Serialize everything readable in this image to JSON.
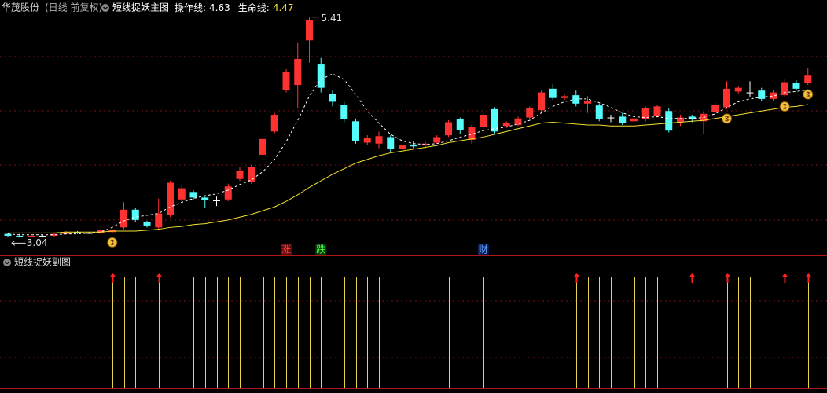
{
  "header": {
    "stock": "华茂股份",
    "period": "(日线 前复权)",
    "indicator": "短线捉妖主图",
    "lines": [
      {
        "label": "操作线:",
        "value": 4.63,
        "color": "#ffffff"
      },
      {
        "label": "生命线:",
        "value": 4.47,
        "color": "#f0e030"
      }
    ]
  },
  "sub_title": "短线捉妖副图",
  "chart_data": {
    "type": "candlestick",
    "ylim": [
      2.95,
      5.5
    ],
    "colors": {
      "up": "#ff3232",
      "down": "#54fcfc",
      "flat": "#ffffff"
    },
    "open": [
      3.08,
      3.06,
      3.05,
      3.06,
      3.06,
      3.08,
      3.1,
      3.09,
      3.09,
      3.1,
      3.15,
      3.34,
      3.21,
      3.15,
      3.28,
      3.45,
      3.53,
      3.47,
      3.44,
      3.45,
      3.67,
      3.64,
      3.93,
      4.18,
      4.63,
      4.68,
      5.16,
      4.9,
      4.58,
      4.47,
      4.29,
      4.06,
      4.05,
      4.12,
      3.99,
      4.04,
      4.03,
      4.06,
      4.14,
      4.31,
      4.09,
      4.23,
      4.42,
      4.24,
      4.25,
      4.33,
      4.41,
      4.64,
      4.54,
      4.57,
      4.48,
      4.46,
      4.33,
      4.34,
      4.29,
      4.31,
      4.35,
      4.4,
      4.28,
      4.34,
      4.29,
      4.39,
      4.44,
      4.61,
      4.6,
      4.62,
      4.53,
      4.57,
      4.7,
      4.7
    ],
    "high": [
      3.09,
      3.08,
      3.07,
      3.07,
      3.09,
      3.11,
      3.11,
      3.1,
      3.13,
      3.13,
      3.42,
      3.36,
      3.22,
      3.46,
      3.65,
      3.6,
      3.55,
      3.48,
      3.48,
      3.62,
      3.8,
      3.82,
      4.13,
      4.38,
      4.85,
      5.13,
      5.41,
      4.97,
      4.62,
      4.5,
      4.32,
      4.14,
      4.18,
      4.14,
      4.06,
      4.08,
      4.07,
      4.14,
      4.3,
      4.33,
      4.25,
      4.38,
      4.44,
      4.29,
      4.34,
      4.45,
      4.62,
      4.69,
      4.58,
      4.62,
      4.56,
      4.48,
      4.36,
      4.38,
      4.34,
      4.45,
      4.47,
      4.43,
      4.36,
      4.36,
      4.39,
      4.49,
      4.72,
      4.67,
      4.72,
      4.65,
      4.63,
      4.74,
      4.73,
      4.86
    ],
    "low": [
      3.05,
      3.04,
      3.04,
      3.05,
      3.05,
      3.07,
      3.08,
      3.08,
      3.08,
      3.09,
      3.13,
      3.21,
      3.15,
      3.13,
      3.26,
      3.42,
      3.45,
      3.36,
      3.38,
      3.43,
      3.65,
      3.62,
      3.91,
      4.16,
      4.6,
      4.43,
      4.92,
      4.6,
      4.45,
      4.28,
      4.05,
      4.03,
      4.0,
      3.95,
      3.97,
      4.0,
      4.0,
      4.05,
      4.12,
      4.15,
      4.05,
      4.21,
      4.16,
      4.22,
      4.24,
      4.31,
      4.38,
      4.52,
      4.52,
      4.45,
      4.38,
      4.29,
      4.28,
      4.25,
      4.26,
      4.29,
      4.33,
      4.17,
      4.24,
      4.28,
      4.15,
      4.37,
      4.42,
      4.59,
      4.55,
      4.51,
      4.51,
      4.55,
      4.62,
      4.68
    ],
    "close": [
      3.06,
      3.05,
      3.06,
      3.06,
      3.08,
      3.1,
      3.09,
      3.09,
      3.12,
      3.12,
      3.34,
      3.23,
      3.17,
      3.3,
      3.63,
      3.57,
      3.47,
      3.44,
      3.44,
      3.59,
      3.76,
      3.8,
      4.1,
      4.36,
      4.82,
      4.96,
      5.38,
      4.65,
      4.5,
      4.31,
      4.08,
      4.11,
      4.13,
      3.99,
      4.03,
      4.02,
      4.05,
      4.12,
      4.28,
      4.2,
      4.23,
      4.36,
      4.18,
      4.27,
      4.32,
      4.43,
      4.6,
      4.54,
      4.56,
      4.48,
      4.51,
      4.31,
      4.33,
      4.27,
      4.32,
      4.43,
      4.45,
      4.19,
      4.33,
      4.31,
      4.37,
      4.47,
      4.64,
      4.65,
      4.6,
      4.53,
      4.6,
      4.71,
      4.64,
      4.78
    ],
    "series": [
      {
        "name": "操作线",
        "color": "#ffffff",
        "dashed": true,
        "values": [
          3.08,
          3.07,
          3.07,
          3.07,
          3.07,
          3.08,
          3.08,
          3.09,
          3.1,
          3.15,
          3.22,
          3.26,
          3.28,
          3.3,
          3.37,
          3.42,
          3.46,
          3.49,
          3.51,
          3.55,
          3.61,
          3.66,
          3.75,
          3.88,
          4.07,
          4.3,
          4.56,
          4.74,
          4.8,
          4.74,
          4.58,
          4.4,
          4.27,
          4.15,
          4.08,
          4.05,
          4.04,
          4.05,
          4.08,
          4.12,
          4.15,
          4.19,
          4.21,
          4.23,
          4.26,
          4.3,
          4.38,
          4.45,
          4.5,
          4.53,
          4.53,
          4.49,
          4.44,
          4.38,
          4.34,
          4.33,
          4.34,
          4.32,
          4.32,
          4.32,
          4.33,
          4.37,
          4.44,
          4.5,
          4.53,
          4.55,
          4.56,
          4.6,
          4.61,
          4.63
        ]
      },
      {
        "name": "生命线",
        "color": "#f0e030",
        "dashed": false,
        "values": [
          3.09,
          3.09,
          3.09,
          3.09,
          3.09,
          3.1,
          3.1,
          3.1,
          3.1,
          3.11,
          3.11,
          3.11,
          3.12,
          3.13,
          3.15,
          3.16,
          3.18,
          3.19,
          3.21,
          3.23,
          3.26,
          3.29,
          3.33,
          3.37,
          3.43,
          3.5,
          3.58,
          3.65,
          3.72,
          3.78,
          3.84,
          3.88,
          3.92,
          3.95,
          3.97,
          3.99,
          4.01,
          4.03,
          4.06,
          4.08,
          4.1,
          4.12,
          4.15,
          4.18,
          4.21,
          4.24,
          4.27,
          4.28,
          4.27,
          4.26,
          4.25,
          4.25,
          4.24,
          4.24,
          4.24,
          4.25,
          4.26,
          4.27,
          4.28,
          4.29,
          4.3,
          4.32,
          4.34,
          4.36,
          4.38,
          4.4,
          4.42,
          4.44,
          4.45,
          4.47
        ]
      }
    ],
    "high_mark": {
      "value": 5.41,
      "index": 26
    },
    "low_mark": {
      "value": 3.04,
      "index": 1
    },
    "bag_signals": [
      9,
      62,
      67,
      69
    ],
    "event_markers": [
      {
        "label": "涨",
        "index": 24,
        "color": "#ff4040",
        "background": "#5a0a0a"
      },
      {
        "label": "跌",
        "index": 27,
        "color": "#40ff40",
        "background": "#0a3a0a"
      },
      {
        "label": "财",
        "index": 41,
        "color": "#60a0ff",
        "background": "#0a1a4a"
      }
    ],
    "line_signals": [
      9,
      10,
      11,
      13,
      14,
      15,
      16,
      17,
      18,
      19,
      20,
      21,
      22,
      23,
      24,
      25,
      26,
      27,
      28,
      29,
      30,
      31,
      32,
      38,
      41,
      49,
      50,
      51,
      52,
      53,
      54,
      55,
      56,
      60,
      62,
      63,
      64,
      67,
      69
    ],
    "line_color": "#e8d44a",
    "arrow_signals": [
      9,
      13,
      49,
      59,
      62,
      67,
      69
    ],
    "arrow_color": "#ff2020"
  }
}
